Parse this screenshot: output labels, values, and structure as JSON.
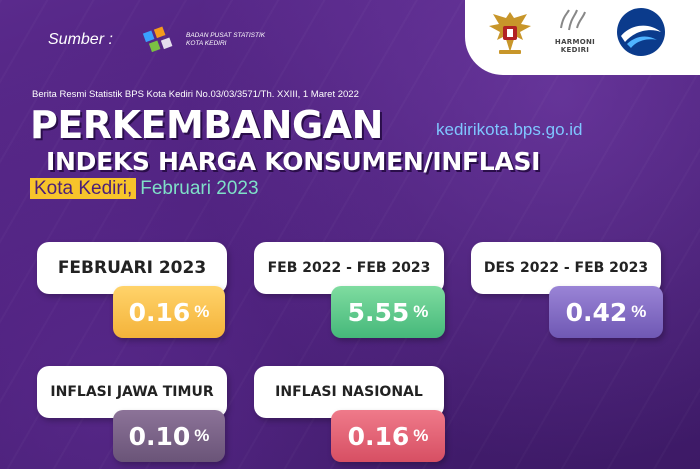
{
  "source": {
    "label": "Sumber :",
    "org_line1": "BADAN PUSAT STATISTIK",
    "org_line2": "KOTA KEDIRI"
  },
  "logos": {
    "harmoni_line1": "HARMONI",
    "harmoni_line2": "KEDIRI",
    "icons": [
      "garuda-emblem",
      "harmoni-kediri-logo",
      "kominfo-logo",
      "bps-logo"
    ]
  },
  "header": {
    "berita": "Berita Resmi Statistik BPS Kota Kediri No.03/03/3571/Th. XXIII, 1 Maret 2022",
    "title_line1": "PERKEMBANGAN",
    "url": "kedirikota.bps.go.id",
    "title_line2": "INDEKS HARGA KONSUMEN/INFLASI",
    "city": "Kota Kediri,",
    "period": "Februari 2023"
  },
  "cards": [
    {
      "label": "FEBRUARI 2023",
      "value": "0.16",
      "unit": "%",
      "color": "#f4b33a"
    },
    {
      "label": "FEB 2022 - FEB 2023",
      "value": "5.55",
      "unit": "%",
      "color": "#45b87a"
    },
    {
      "label": "DES 2022 - FEB 2023",
      "value": "0.42",
      "unit": "%",
      "color": "#6f58b4"
    },
    {
      "label": "INFLASI JAWA TIMUR",
      "value": "0.10",
      "unit": "%",
      "color": "#6a5478"
    },
    {
      "label": "INFLASI NASIONAL",
      "value": "0.16",
      "unit": "%",
      "color": "#d74f63"
    }
  ],
  "colors": {
    "background": "#4a1f78",
    "accent_yellow": "#f7c42b",
    "url_blue": "#7fc6ff"
  }
}
